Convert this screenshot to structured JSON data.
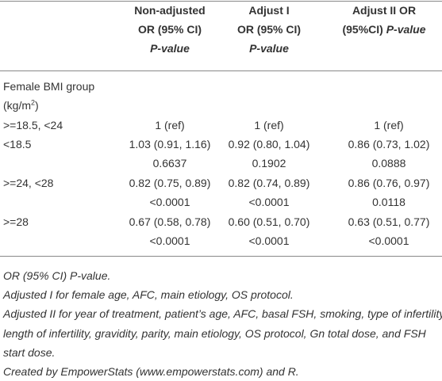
{
  "header": [
    {
      "lines": [
        "Non-adjusted",
        "OR (95% CI)"
      ],
      "italic": "P-value"
    },
    {
      "lines": [
        "Adjust I",
        "OR (95% CI)"
      ],
      "italic": "P-value"
    },
    {
      "lines": [
        "Adjust II OR",
        "(95%CI)"
      ],
      "italic": "P-value"
    }
  ],
  "group": {
    "label": "Female BMI group",
    "unit_prefix": "(kg/m",
    "unit_sup": "2",
    "unit_suffix": ")"
  },
  "rows": [
    {
      "label": ">=18.5, <24",
      "cells": [
        {
          "or": "1 (ref)"
        },
        {
          "or": "1 (ref)"
        },
        {
          "or": "1 (ref)"
        }
      ]
    },
    {
      "label": "<18.5",
      "cells": [
        {
          "or": "1.03 (0.91, 1.16)",
          "p": "0.6637"
        },
        {
          "or": "0.92 (0.80, 1.04)",
          "p": "0.1902"
        },
        {
          "or": "0.86 (0.73, 1.02)",
          "p": "0.0888"
        }
      ]
    },
    {
      "label": ">=24, <28",
      "cells": [
        {
          "or": "0.82 (0.75, 0.89)",
          "p": "<0.0001"
        },
        {
          "or": "0.82 (0.74, 0.89)",
          "p": "<0.0001"
        },
        {
          "or": "0.86 (0.76, 0.97)",
          "p": "0.0118"
        }
      ]
    },
    {
      "label": ">=28",
      "cells": [
        {
          "or": "0.67 (0.58, 0.78)",
          "p": "<0.0001"
        },
        {
          "or": "0.60 (0.51, 0.70)",
          "p": "<0.0001"
        },
        {
          "or": "0.63 (0.51, 0.77)",
          "p": "<0.0001"
        }
      ]
    }
  ],
  "notes": [
    "OR (95% CI) P-value.",
    "Adjusted I for female age, AFC, main etiology, OS protocol.",
    "Adjusted II for year of treatment, patient’s age, AFC, basal FSH, smoking, type of infertility,",
    "length of infertility, gravidity, parity, main etiology, OS protocol, Gn total dose, and FSH",
    "start dose.",
    "Created by EmpowerStats (www.empowerstats.com) and R."
  ]
}
